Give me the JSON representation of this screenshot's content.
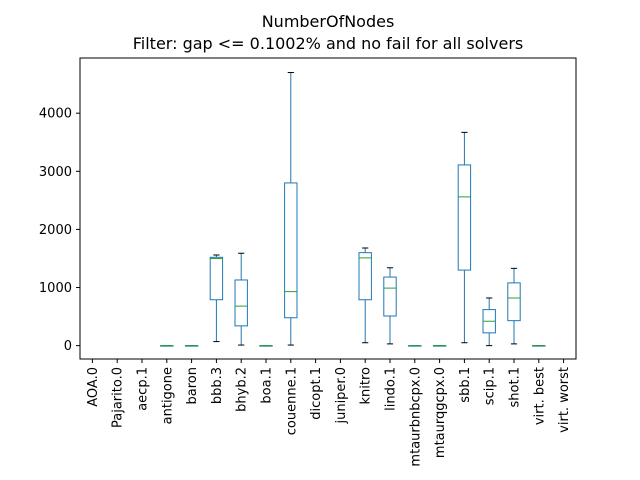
{
  "chart_data": {
    "type": "box",
    "title": "NumberOfNodes",
    "subtitle": "Filter: gap <= 0.1002% and no fail for all solvers",
    "xlabel": "",
    "ylabel": "",
    "ylim": [
      -230,
      4950
    ],
    "yticks": [
      0,
      1000,
      2000,
      3000,
      4000
    ],
    "ytick_labels": [
      "0",
      "1000",
      "2000",
      "3000",
      "4000"
    ],
    "categories": [
      "AOA.0",
      "Pajarito.0",
      "aecp.1",
      "antigone",
      "baron",
      "bbb.3",
      "bhyb.2",
      "boa.1",
      "couenne.1",
      "dicopt.1",
      "juniper.0",
      "knitro",
      "lindo.1",
      "mtaurbnbcpx.0",
      "mtaurqgcpx.0",
      "sbb.1",
      "scip.1",
      "shot.1",
      "virt. best",
      "virt. worst"
    ],
    "boxes": [
      null,
      null,
      null,
      {
        "whislo": 0,
        "q1": 0,
        "med": 0,
        "q3": 0,
        "whishi": 0
      },
      {
        "whislo": 0,
        "q1": 0,
        "med": 0,
        "q3": 0,
        "whishi": 0
      },
      {
        "whislo": 70,
        "q1": 790,
        "med": 1500,
        "q3": 1520,
        "whishi": 1560
      },
      {
        "whislo": 10,
        "q1": 340,
        "med": 680,
        "q3": 1130,
        "whishi": 1590
      },
      {
        "whislo": 0,
        "q1": 0,
        "med": 0,
        "q3": 0,
        "whishi": 0
      },
      {
        "whislo": 10,
        "q1": 480,
        "med": 930,
        "q3": 2800,
        "whishi": 4700
      },
      null,
      null,
      {
        "whislo": 50,
        "q1": 790,
        "med": 1510,
        "q3": 1600,
        "whishi": 1680
      },
      {
        "whislo": 30,
        "q1": 510,
        "med": 990,
        "q3": 1180,
        "whishi": 1340
      },
      {
        "whislo": 0,
        "q1": 0,
        "med": 0,
        "q3": 0,
        "whishi": 0
      },
      {
        "whislo": 0,
        "q1": 0,
        "med": 0,
        "q3": 0,
        "whishi": 0
      },
      {
        "whislo": 50,
        "q1": 1300,
        "med": 2560,
        "q3": 3110,
        "whishi": 3670
      },
      {
        "whislo": 0,
        "q1": 220,
        "med": 420,
        "q3": 620,
        "whishi": 820
      },
      {
        "whislo": 30,
        "q1": 430,
        "med": 820,
        "q3": 1080,
        "whishi": 1330
      },
      {
        "whislo": 0,
        "q1": 0,
        "med": 0,
        "q3": 0,
        "whishi": 0
      },
      null
    ],
    "box_color": "#1f77b4",
    "median_color": "#2ca02c"
  }
}
